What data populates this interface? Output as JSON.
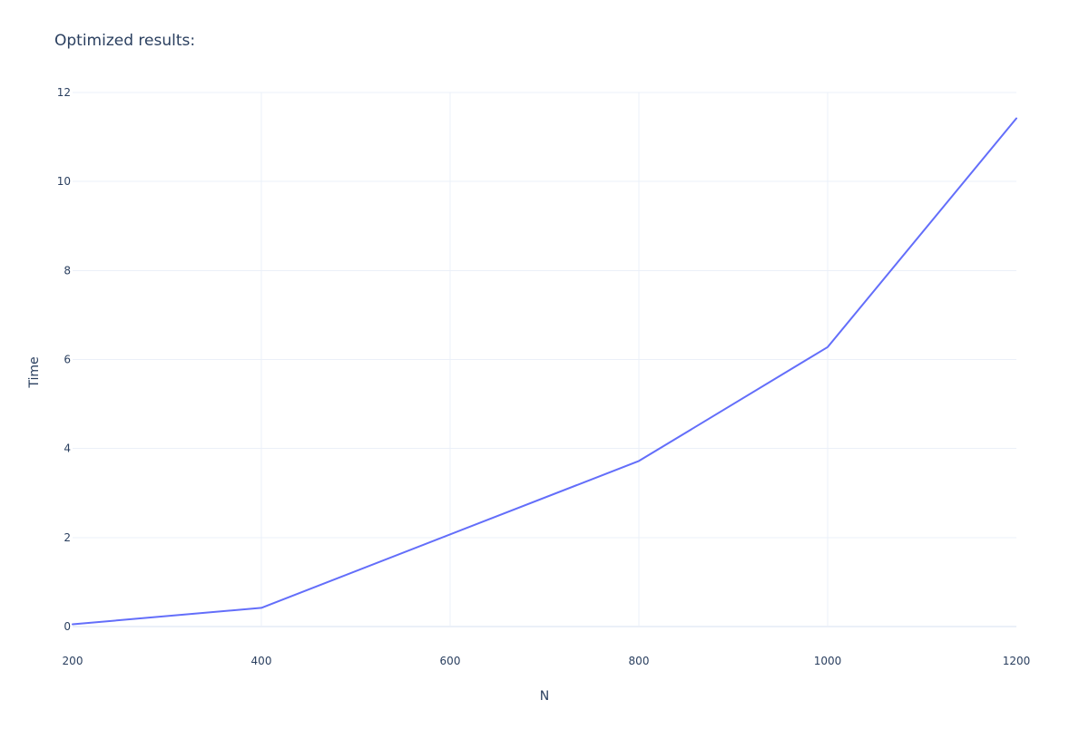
{
  "chart_data": {
    "type": "line",
    "title": "Optimized results:",
    "xlabel": "N",
    "ylabel": "Time",
    "xlim": [
      200,
      1200
    ],
    "ylim": [
      -0.6,
      12
    ],
    "xticks": [
      200,
      400,
      600,
      800,
      1000,
      1200
    ],
    "yticks": [
      0,
      2,
      4,
      6,
      8,
      10,
      12
    ],
    "xtick_labels": [
      "200",
      "400",
      "600",
      "800",
      "1000",
      "1200"
    ],
    "ytick_labels": [
      "0",
      "2",
      "4",
      "6",
      "8",
      "10",
      "12"
    ],
    "grid": true,
    "legend": "none",
    "series": [
      {
        "color": "#636efa",
        "x": [
          200,
          400,
          800,
          1000,
          1200
        ],
        "y": [
          0.05,
          0.42,
          3.72,
          6.28,
          11.42
        ]
      }
    ]
  }
}
